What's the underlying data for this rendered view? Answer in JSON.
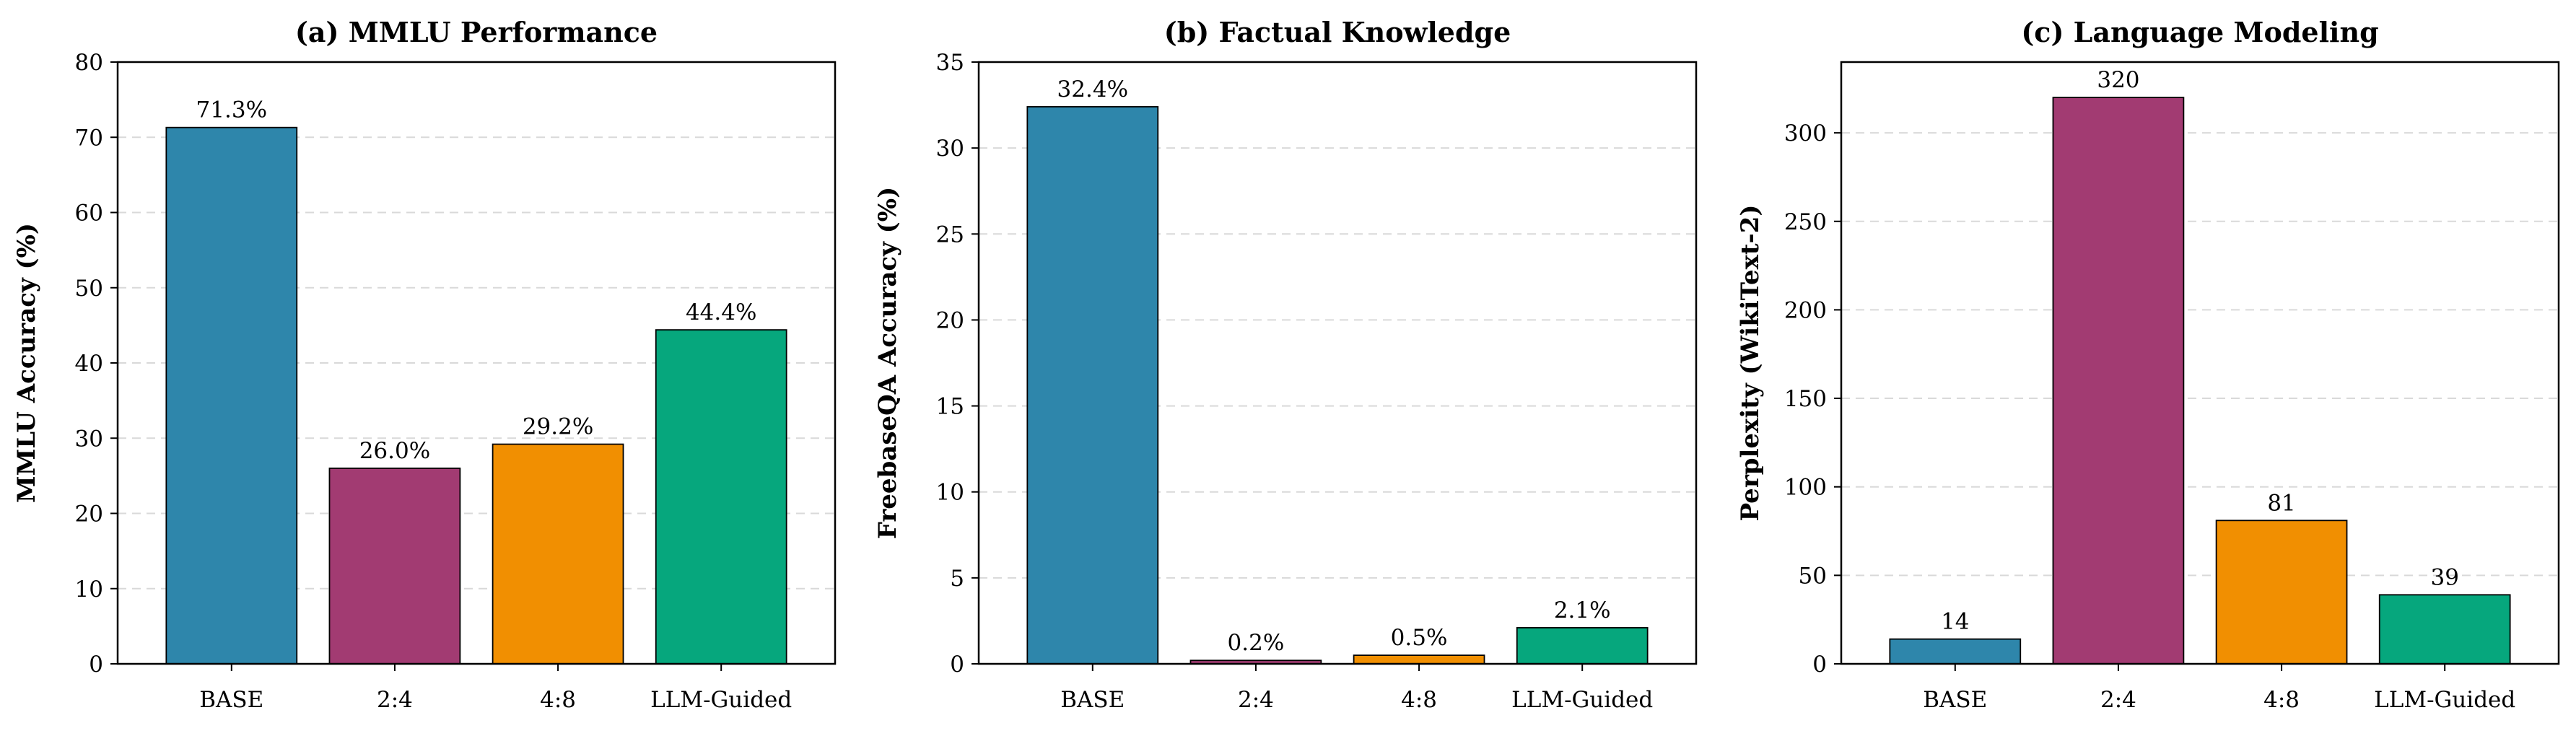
{
  "colors": {
    "base": "#2E86AB",
    "two_four": "#A23B72",
    "four_eight": "#F18F01",
    "llm_guided": "#06A77D"
  },
  "chart_data": [
    {
      "type": "bar",
      "title": "(a) MMLU Performance",
      "xlabel": "",
      "ylabel": "MMLU Accuracy (%)",
      "categories": [
        "BASE",
        "2:4",
        "4:8",
        "LLM-Guided"
      ],
      "values": [
        71.3,
        26.0,
        29.2,
        44.4
      ],
      "value_labels": [
        "71.3%",
        "26.0%",
        "29.2%",
        "44.4%"
      ],
      "ylim": [
        0,
        80
      ],
      "yticks": [
        0,
        10,
        20,
        30,
        40,
        50,
        60,
        70,
        80
      ],
      "grid": "y-dashed"
    },
    {
      "type": "bar",
      "title": "(b) Factual Knowledge",
      "xlabel": "",
      "ylabel": "FreebaseQA Accuracy (%)",
      "categories": [
        "BASE",
        "2:4",
        "4:8",
        "LLM-Guided"
      ],
      "values": [
        32.4,
        0.2,
        0.5,
        2.1
      ],
      "value_labels": [
        "32.4%",
        "0.2%",
        "0.5%",
        "2.1%"
      ],
      "ylim": [
        0,
        35
      ],
      "yticks": [
        0,
        5,
        10,
        15,
        20,
        25,
        30,
        35
      ],
      "grid": "y-dashed"
    },
    {
      "type": "bar",
      "title": "(c) Language Modeling",
      "xlabel": "",
      "ylabel": "Perplexity (WikiText-2)",
      "categories": [
        "BASE",
        "2:4",
        "4:8",
        "LLM-Guided"
      ],
      "values": [
        14,
        320,
        81,
        39
      ],
      "value_labels": [
        "14",
        "320",
        "81",
        "39"
      ],
      "ylim": [
        0,
        340
      ],
      "yticks": [
        0,
        50,
        100,
        150,
        200,
        250,
        300
      ],
      "grid": "y-dashed"
    }
  ]
}
